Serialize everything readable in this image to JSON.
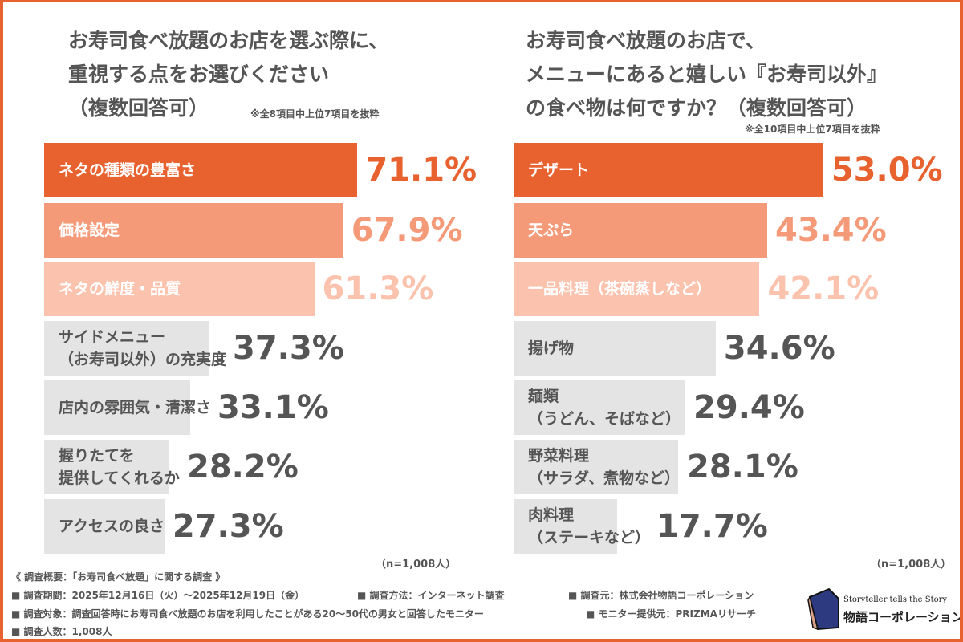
{
  "chart_data": [
    {
      "type": "bar",
      "orientation": "horizontal",
      "title": "お寿司食べ放題のお店を選ぶ際に、\n重視する点をお選びください\n（複数回答可）",
      "note": "※全8項目中上位7項目を抜粋",
      "categories": [
        "ネタの種類の豊富さ",
        "価格設定",
        "ネタの鮮度・品質",
        "サイドメニュー\n（お寿司以外）の充実度",
        "店内の雰囲気・清潔さ",
        "握りたてを\n提供してくれるか",
        "アクセスの良さ"
      ],
      "values": [
        71.1,
        67.9,
        61.3,
        37.3,
        33.1,
        28.2,
        27.3
      ],
      "labels": [
        "71.1%",
        "67.9%",
        "61.3%",
        "37.3%",
        "33.1%",
        "28.2%",
        "27.3%"
      ],
      "sample": "（n=1,008人）"
    },
    {
      "type": "bar",
      "orientation": "horizontal",
      "title": "お寿司食べ放題のお店で、\nメニューにあると嬉しい『お寿司以外』\nの食べ物は何ですか？（複数回答可）",
      "note": "※全10項目中上位7項目を抜粋",
      "categories": [
        "デザート",
        "天ぷら",
        "一品料理（茶碗蒸しなど）",
        "揚げ物",
        "麺類\n（うどん、そばなど）",
        "野菜料理\n（サラダ、煮物など）",
        "肉料理\n（ステーキなど）"
      ],
      "values": [
        53.0,
        43.4,
        42.1,
        34.6,
        29.4,
        28.1,
        17.7
      ],
      "labels": [
        "53.0%",
        "43.4%",
        "42.1%",
        "34.6%",
        "29.4%",
        "28.1%",
        "17.7%"
      ],
      "sample": "（n=1,008人）"
    }
  ],
  "colors": {
    "rank1": "#e8622f",
    "rank2": "#f49a78",
    "rank3": "#fbc3ad",
    "other": "#e4e4e4",
    "text": "#555555",
    "frame": "#e8622f"
  },
  "footer": {
    "heading": "《 調査概要：「お寿司食べ放題」に関する調査 》",
    "period": "■ 調査期間：2025年12月16日（火）～2025年12月19日（金）",
    "method": "■ 調査方法：インターネット調査",
    "source": "■ 調査元：株式会社物語コーポレーション",
    "target": "■ 調査対象：調査回答時にお寿司食べ放題のお店を利用したことがある20～50代の男女と回答したモニター",
    "provider": "■ モニター提供元：PRIZMAリサーチ",
    "count": "■ 調査人数：1,008人"
  },
  "logo": {
    "tagline": "Storyteller tells the Story",
    "name": "物語コーポレーション",
    "icon": "book-icon"
  }
}
